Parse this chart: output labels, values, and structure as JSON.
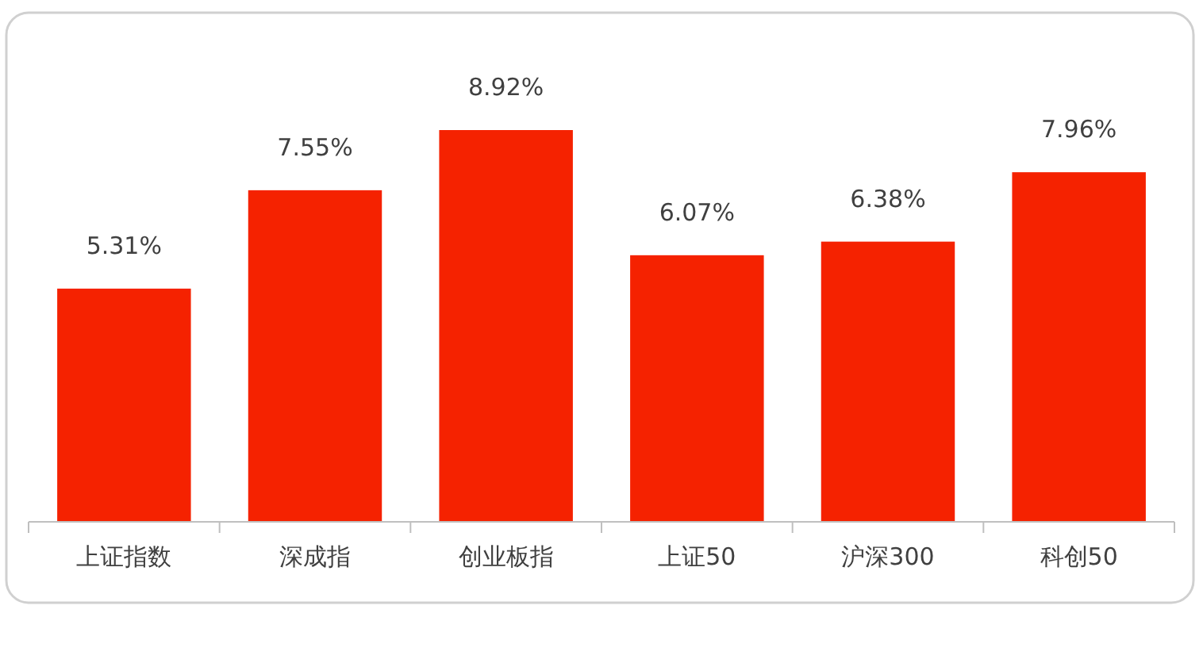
{
  "chart_data": {
    "type": "bar",
    "categories": [
      "上证指数",
      "深成指",
      "创业板指",
      "上证50",
      "沪深300",
      "科创50"
    ],
    "values": [
      5.31,
      7.55,
      8.92,
      6.07,
      6.38,
      7.96
    ],
    "value_labels": [
      "5.31%",
      "7.55%",
      "8.92%",
      "6.07%",
      "6.38%",
      "7.96%"
    ],
    "color": "#f52200"
  }
}
